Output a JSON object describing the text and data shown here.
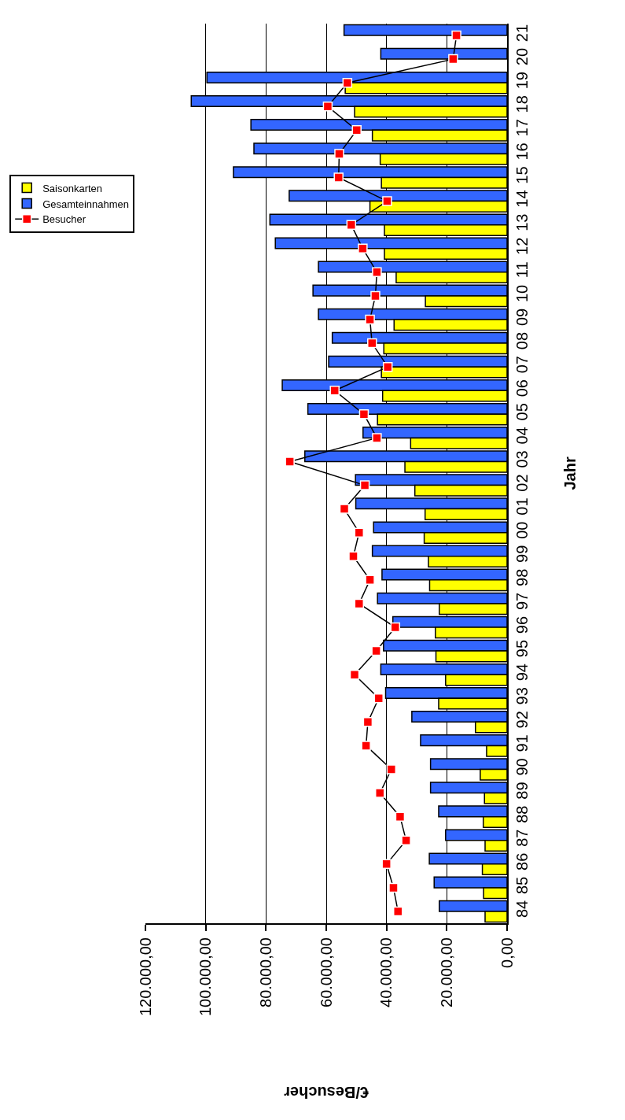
{
  "chart_data": {
    "type": "bar",
    "orientation": "horizontal",
    "xlabel": "€/Besucher",
    "ylabel": "Jahr",
    "categories": [
      "21",
      "20",
      "19",
      "18",
      "17",
      "16",
      "15",
      "14",
      "13",
      "12",
      "11",
      "10",
      "09",
      "08",
      "07",
      "06",
      "05",
      "04",
      "03",
      "02",
      "01",
      "00",
      "99",
      "98",
      "97",
      "96",
      "95",
      "94",
      "93",
      "92",
      "91",
      "90",
      "89",
      "88",
      "87",
      "86",
      "85",
      "84"
    ],
    "series": [
      {
        "name": "Saisonkarten",
        "color": "#ffff00",
        "values": [
          null,
          null,
          53700,
          50600,
          44700,
          42100,
          41700,
          45500,
          40700,
          40700,
          36800,
          27100,
          37500,
          40900,
          41700,
          41300,
          43000,
          32000,
          33900,
          30600,
          27200,
          27500,
          26100,
          25700,
          22500,
          23800,
          23600,
          20400,
          22700,
          10500,
          6800,
          8900,
          7500,
          7900,
          7300,
          8200,
          7800,
          7300
        ]
      },
      {
        "name": "Gesamteinnahmen",
        "color": "#3366ff",
        "values": [
          54100,
          41900,
          99600,
          104800,
          85000,
          84000,
          90800,
          72300,
          78700,
          76900,
          62600,
          64400,
          62600,
          58000,
          59200,
          74600,
          66100,
          47800,
          67100,
          50300,
          50200,
          44300,
          44700,
          41500,
          43000,
          37900,
          41000,
          41900,
          40300,
          31600,
          28700,
          25400,
          25400,
          22700,
          20400,
          25800,
          24200,
          22500
        ]
      },
      {
        "name": "Besucher",
        "type": "line",
        "color": "#ff0000",
        "marker": "square",
        "line_style": "solid",
        "values": [
          16800,
          17900,
          53000,
          59500,
          49900,
          55700,
          55900,
          39800,
          51700,
          47900,
          43200,
          43700,
          45500,
          44800,
          39600,
          57200,
          47500,
          43200,
          72100,
          47200,
          54000,
          49100,
          51000,
          45500,
          49100,
          37100,
          43400,
          50600,
          42600,
          46200,
          46800,
          38400,
          42200,
          35500,
          33500,
          40000,
          37700,
          36200
        ]
      }
    ],
    "xlim": [
      120000,
      0
    ],
    "xticks": [
      {
        "value": 0,
        "label": "0,00"
      },
      {
        "value": 20000,
        "label": "20.000,00"
      },
      {
        "value": 40000,
        "label": "40.000,00"
      },
      {
        "value": 60000,
        "label": "60.000,00"
      },
      {
        "value": 80000,
        "label": "80.000,00"
      },
      {
        "value": 100000,
        "label": "100.000,00"
      },
      {
        "value": 120000,
        "label": "120.000,00"
      }
    ],
    "grid": "x",
    "legend": "left"
  }
}
